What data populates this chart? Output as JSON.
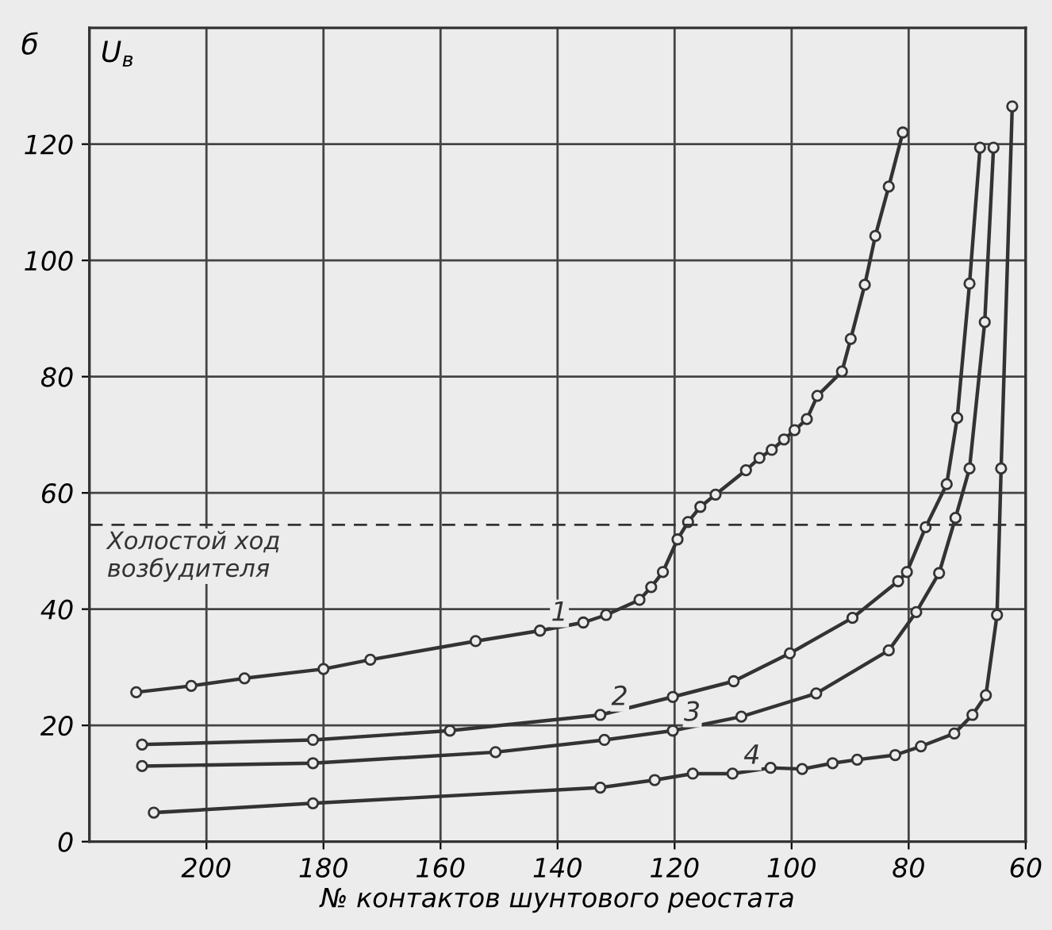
{
  "chart_data": {
    "type": "line",
    "xlabel": "№ контактов шунтового реостата",
    "ylabel": "U$_{в}$",
    "annotations": [
      "б"
    ],
    "xlim": [
      220,
      60
    ],
    "xticks": [
      200,
      180,
      160,
      140,
      120,
      100,
      80,
      60
    ],
    "ylim": [
      0,
      140
    ],
    "yticks": [
      0,
      20,
      40,
      60,
      80,
      100,
      120
    ],
    "grid": true,
    "legend": false,
    "marker": "circle",
    "line_style": "solid",
    "ref_lines": [
      {
        "axis": "y",
        "value": 54.5,
        "label": "Холостой ход\nвозбудителя",
        "line_style": "dashed",
        "color": "#333333"
      }
    ],
    "series": [
      {
        "name": "1",
        "color": "#333333",
        "x": [
          212,
          202.6,
          193.5,
          180,
          172,
          154,
          143,
          135.6,
          131.7,
          126,
          124,
          122,
          119.5,
          117.7,
          115.6,
          113,
          107.8,
          105.5,
          103.4,
          101.3,
          99.5,
          97.4,
          95.6,
          91.4,
          89.9,
          87.5,
          85.7,
          83.4,
          81
        ],
        "values": [
          25.7,
          26.8,
          28.1,
          29.7,
          31.3,
          34.5,
          36.3,
          37.7,
          39,
          41.6,
          43.8,
          46.4,
          52,
          55,
          57.6,
          59.7,
          63.9,
          66,
          67.4,
          69.2,
          70.8,
          72.7,
          76.7,
          80.9,
          86.5,
          95.8,
          104.2,
          112.7,
          122
        ]
      },
      {
        "name": "2",
        "color": "#333333",
        "x": [
          211,
          181.8,
          158.4,
          132.7,
          120.3,
          109.9,
          100.3,
          89.6,
          81.8,
          80.3,
          77.1,
          73.5,
          71.7,
          69.6,
          67.8
        ],
        "values": [
          16.7,
          17.5,
          19.1,
          21.8,
          24.9,
          27.6,
          32.4,
          38.5,
          44.8,
          46.4,
          54.1,
          61.5,
          72.9,
          96,
          119.4
        ]
      },
      {
        "name": "3",
        "color": "#333333",
        "x": [
          211,
          181.8,
          150.6,
          132,
          120.3,
          108.6,
          95.8,
          83.4,
          78.7,
          74.8,
          72,
          69.6,
          67,
          65.5
        ],
        "values": [
          13,
          13.5,
          15.4,
          17.5,
          19.1,
          21.5,
          25.5,
          32.9,
          39.5,
          46.2,
          55.7,
          64.2,
          89.4,
          119.4
        ]
      },
      {
        "name": "4",
        "color": "#333333",
        "x": [
          209,
          181.8,
          132.7,
          123.4,
          116.9,
          110.1,
          103.6,
          98.2,
          93,
          88.8,
          82.3,
          77.9,
          72.2,
          69.1,
          66.8,
          64.9,
          64.2,
          62.3
        ],
        "values": [
          5,
          6.6,
          9.3,
          10.6,
          11.7,
          11.7,
          12.7,
          12.5,
          13.5,
          14.1,
          14.9,
          16.4,
          18.6,
          21.8,
          25.2,
          39,
          64.2,
          126.5
        ]
      }
    ]
  }
}
